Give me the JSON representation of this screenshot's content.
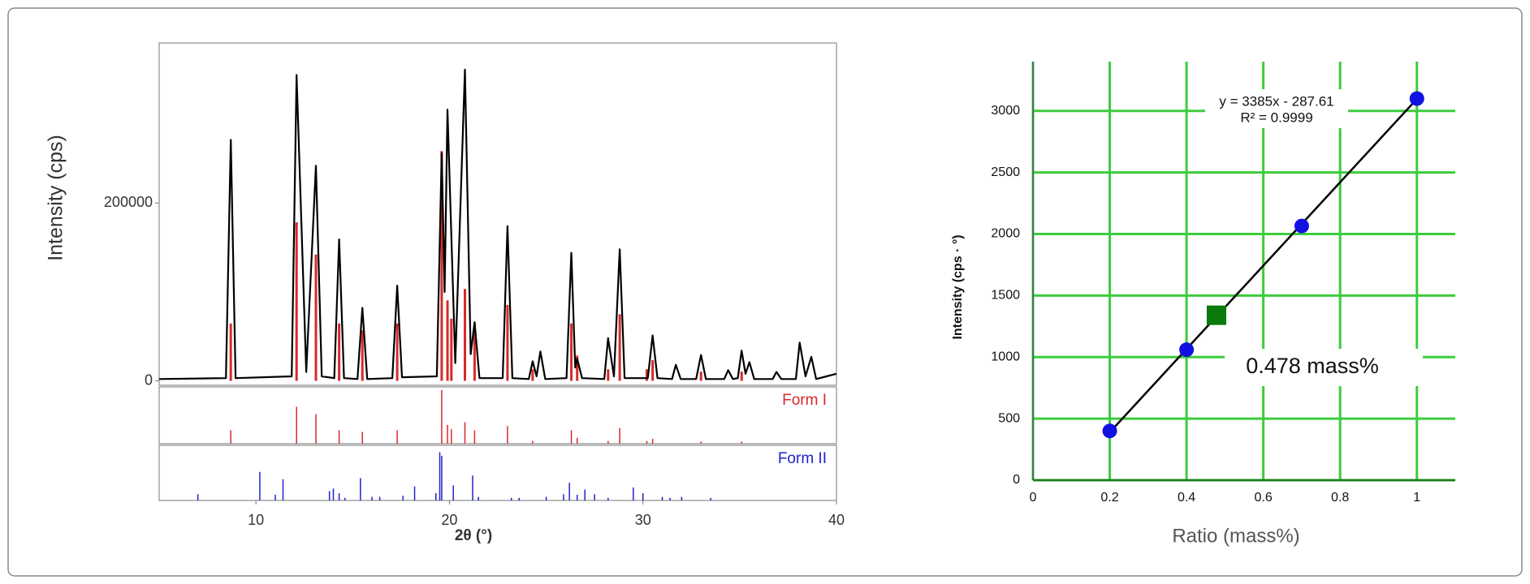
{
  "chart_data": [
    {
      "type": "xrd",
      "xlabel": "2θ (°)",
      "ylabel": "Intensity (cps)",
      "xlim": [
        5,
        40
      ],
      "xticks": [
        10,
        20,
        30,
        40
      ],
      "ylim": [
        -5000,
        380000
      ],
      "yticks": [
        0,
        200000
      ],
      "pattern": {
        "color": "#000000",
        "x": [
          5,
          8.45,
          8.7,
          8.95,
          11.85,
          12.1,
          12.6,
          13.1,
          13.4,
          14.05,
          14.3,
          14.55,
          15.25,
          15.5,
          15.75,
          17.05,
          17.3,
          17.55,
          19.35,
          19.6,
          19.75,
          19.9,
          20.3,
          20.8,
          21.1,
          21.3,
          21.55,
          22.75,
          23.0,
          23.25,
          24.1,
          24.3,
          24.5,
          24.7,
          24.95,
          26.05,
          26.3,
          26.5,
          26.6,
          26.85,
          28.0,
          28.2,
          28.5,
          28.8,
          29.05,
          30.25,
          30.5,
          30.75,
          31.5,
          31.7,
          31.95,
          32.75,
          33.0,
          33.25,
          34.2,
          34.4,
          34.65,
          34.9,
          35.1,
          35.3,
          35.5,
          35.75,
          36.7,
          36.9,
          37.15,
          37.9,
          38.1,
          38.4,
          38.7,
          38.95,
          40
        ],
        "values": [
          2000,
          3000,
          271000,
          3000,
          5000,
          344000,
          10000,
          242000,
          5000,
          3000,
          159000,
          3000,
          2000,
          82000,
          2000,
          3000,
          107000,
          4000,
          5000,
          256000,
          100000,
          305000,
          20000,
          350000,
          30000,
          66000,
          3000,
          3000,
          174000,
          3000,
          2000,
          22000,
          5000,
          33000,
          2000,
          3000,
          144000,
          15000,
          25000,
          3000,
          2000,
          48000,
          5000,
          148000,
          3000,
          3000,
          51000,
          3000,
          2000,
          18000,
          2000,
          2000,
          29000,
          2000,
          2000,
          12000,
          2000,
          3000,
          34000,
          8000,
          21000,
          2000,
          2000,
          10000,
          2000,
          2000,
          43000,
          5000,
          27000,
          2000,
          8000
        ]
      },
      "reference_ylim": [
        0,
        100
      ],
      "references": [
        {
          "name": "Form I",
          "color": "#d62a2a",
          "x": [
            8.7,
            12.1,
            13.1,
            14.3,
            15.5,
            17.3,
            19.6,
            19.9,
            20.1,
            20.8,
            21.3,
            23.0,
            24.3,
            26.3,
            26.6,
            28.2,
            28.8,
            30.2,
            30.5,
            33.0,
            35.1
          ],
          "values": [
            25,
            69,
            55,
            25,
            22,
            25,
            100,
            35,
            27,
            40,
            25,
            33,
            5,
            25,
            11,
            5,
            29,
            5,
            9,
            4,
            4
          ]
        },
        {
          "name": "Form II",
          "color": "#2222cc",
          "x": [
            7.0,
            10.2,
            11.0,
            11.4,
            13.8,
            14.0,
            14.3,
            14.6,
            15.4,
            16.0,
            16.4,
            17.6,
            18.2,
            19.3,
            19.5,
            19.6,
            20.2,
            21.2,
            21.5,
            23.2,
            23.6,
            25.0,
            25.9,
            26.2,
            26.6,
            27.0,
            27.5,
            28.2,
            29.5,
            30.0,
            31.0,
            31.4,
            32.0,
            33.5
          ],
          "values": [
            12,
            55,
            11,
            41,
            18,
            23,
            14,
            5,
            43,
            7,
            7,
            9,
            27,
            14,
            93,
            86,
            29,
            48,
            7,
            5,
            5,
            7,
            12,
            34,
            11,
            21,
            12,
            5,
            25,
            14,
            7,
            5,
            7,
            5
          ]
        }
      ]
    },
    {
      "type": "scatter",
      "xlabel": "Ratio (mass%)",
      "ylabel": "Intensity (cps · °)",
      "xlim": [
        0,
        1.1
      ],
      "xticks": [
        0,
        0.2,
        0.4,
        0.6,
        0.8,
        1
      ],
      "ylim": [
        0,
        3400
      ],
      "yticks": [
        0,
        500,
        1000,
        1500,
        2000,
        2500,
        3000
      ],
      "grid": true,
      "grid_color": "#3ccc3c",
      "series": [
        {
          "color": "#1212e0",
          "x": [
            0.2,
            0.4,
            0.7,
            1
          ],
          "values": [
            400,
            1060,
            2065,
            3100
          ]
        }
      ],
      "trendline": {
        "color": "#000000",
        "x": [
          0.2,
          1
        ],
        "values": [
          389,
          3097
        ]
      },
      "sample": {
        "color": "#0a7a0a",
        "x": 0.478,
        "value": 1340,
        "label": "0.478 mass%"
      },
      "annotations": [
        "y = 3385x - 287.61",
        "R² = 0.9999"
      ]
    }
  ]
}
